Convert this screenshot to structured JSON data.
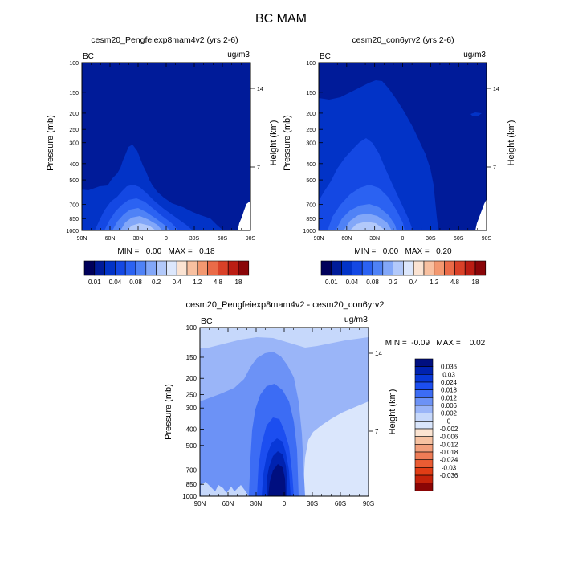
{
  "figure": {
    "title": "BC MAM"
  },
  "colors": {
    "abs_palette": [
      "#00005a",
      "#001b99",
      "#0233c7",
      "#1448e3",
      "#2b62f2",
      "#4f82f6",
      "#82a7f8",
      "#b2c9fa",
      "#dce7fc",
      "#fbe3d2",
      "#f8c0a0",
      "#f39870",
      "#ea6b48",
      "#d94128",
      "#bb1d13",
      "#8a0508"
    ],
    "diff_palette": [
      "#000f80",
      "#0022b0",
      "#0838d8",
      "#1c4ef0",
      "#3c6cf4",
      "#6c92f6",
      "#9ab5f8",
      "#c6d8fb",
      "#dae6fc",
      "#fbe4d2",
      "#f6c2a2",
      "#f29f7c",
      "#ee7c56",
      "#ea5c33",
      "#e23d15",
      "#c5220a",
      "#8b0505"
    ]
  },
  "panels": [
    {
      "id": "left",
      "title": "cesm20_Pengfeiexp8mam4v2 (yrs 2-6)",
      "corner_left": "BC",
      "corner_right": "ug/m3",
      "ylabel": "Pressure (mb)",
      "ylabel_right": "Height (km)",
      "minmax": "MIN =   0.00   MAX =   0.18"
    },
    {
      "id": "right",
      "title": "cesm20_con6yrv2 (yrs 2-6)",
      "corner_left": "BC",
      "corner_right": "ug/m3",
      "ylabel": "Pressure (mb)",
      "ylabel_right": "Height (km)",
      "minmax": "MIN =   0.00   MAX =   0.20"
    },
    {
      "id": "diff",
      "title": "cesm20_Pengfeiexp8mam4v2 - cesm20_con6yrv2",
      "corner_left": "BC",
      "corner_right": "ug/m3",
      "ylabel": "Pressure (mb)",
      "ylabel_right": "Height (km)",
      "minmax": "MIN =  -0.09   MAX =    0.02"
    }
  ],
  "axes": {
    "x_ticks": [
      "90N",
      "60N",
      "30N",
      "0",
      "30S",
      "60S",
      "90S"
    ],
    "y_ticks_small": [
      "100",
      "150",
      "200",
      "250",
      "300",
      "400",
      "500",
      "700",
      "850",
      "1000"
    ],
    "y_ticks_large": [
      "100",
      "150",
      "200",
      "250",
      "300",
      "400",
      "500",
      "700",
      "850",
      "1000"
    ],
    "right_ticks": [
      "14",
      "7"
    ]
  },
  "chart_data": [
    {
      "type": "heatmap",
      "title": "cesm20_Pengfeiexp8mam4v2 (yrs 2-6)",
      "variable": "BC",
      "units": "ug/m3",
      "ylabel": "Pressure (mb)",
      "ylabel_right": "Height (km)",
      "x_ticks": [
        "90N",
        "60N",
        "30N",
        "0",
        "30S",
        "60S",
        "90S"
      ],
      "y_ticks": [
        100,
        150,
        200,
        250,
        300,
        400,
        500,
        700,
        850,
        1000
      ],
      "min": 0.0,
      "max": 0.18
    },
    {
      "type": "heatmap",
      "title": "cesm20_con6yrv2 (yrs 2-6)",
      "variable": "BC",
      "units": "ug/m3",
      "ylabel": "Pressure (mb)",
      "ylabel_right": "Height (km)",
      "x_ticks": [
        "90N",
        "60N",
        "30N",
        "0",
        "30S",
        "60S",
        "90S"
      ],
      "y_ticks": [
        100,
        150,
        200,
        250,
        300,
        400,
        500,
        700,
        850,
        1000
      ],
      "min": 0.0,
      "max": 0.2
    },
    {
      "type": "heatmap",
      "title": "cesm20_Pengfeiexp8mam4v2 - cesm20_con6yrv2",
      "variable": "BC",
      "units": "ug/m3",
      "ylabel": "Pressure (mb)",
      "ylabel_right": "Height (km)",
      "x_ticks": [
        "90N",
        "60N",
        "30N",
        "0",
        "30S",
        "60S",
        "90S"
      ],
      "y_ticks": [
        100,
        150,
        200,
        250,
        300,
        400,
        500,
        700,
        850,
        1000
      ],
      "min": -0.09,
      "max": 0.02
    }
  ],
  "colorbar_abs": {
    "labels": [
      "0.01",
      "0.04",
      "0.08",
      "0.2",
      "0.4",
      "1.2",
      "4.8",
      "18"
    ]
  },
  "colorbar_diff": {
    "labels": [
      "0.036",
      "0.03",
      "0.024",
      "0.018",
      "0.012",
      "0.006",
      "0.002",
      "0",
      "-0.002",
      "-0.006",
      "-0.012",
      "-0.018",
      "-0.024",
      "-0.03",
      "-0.036"
    ]
  }
}
